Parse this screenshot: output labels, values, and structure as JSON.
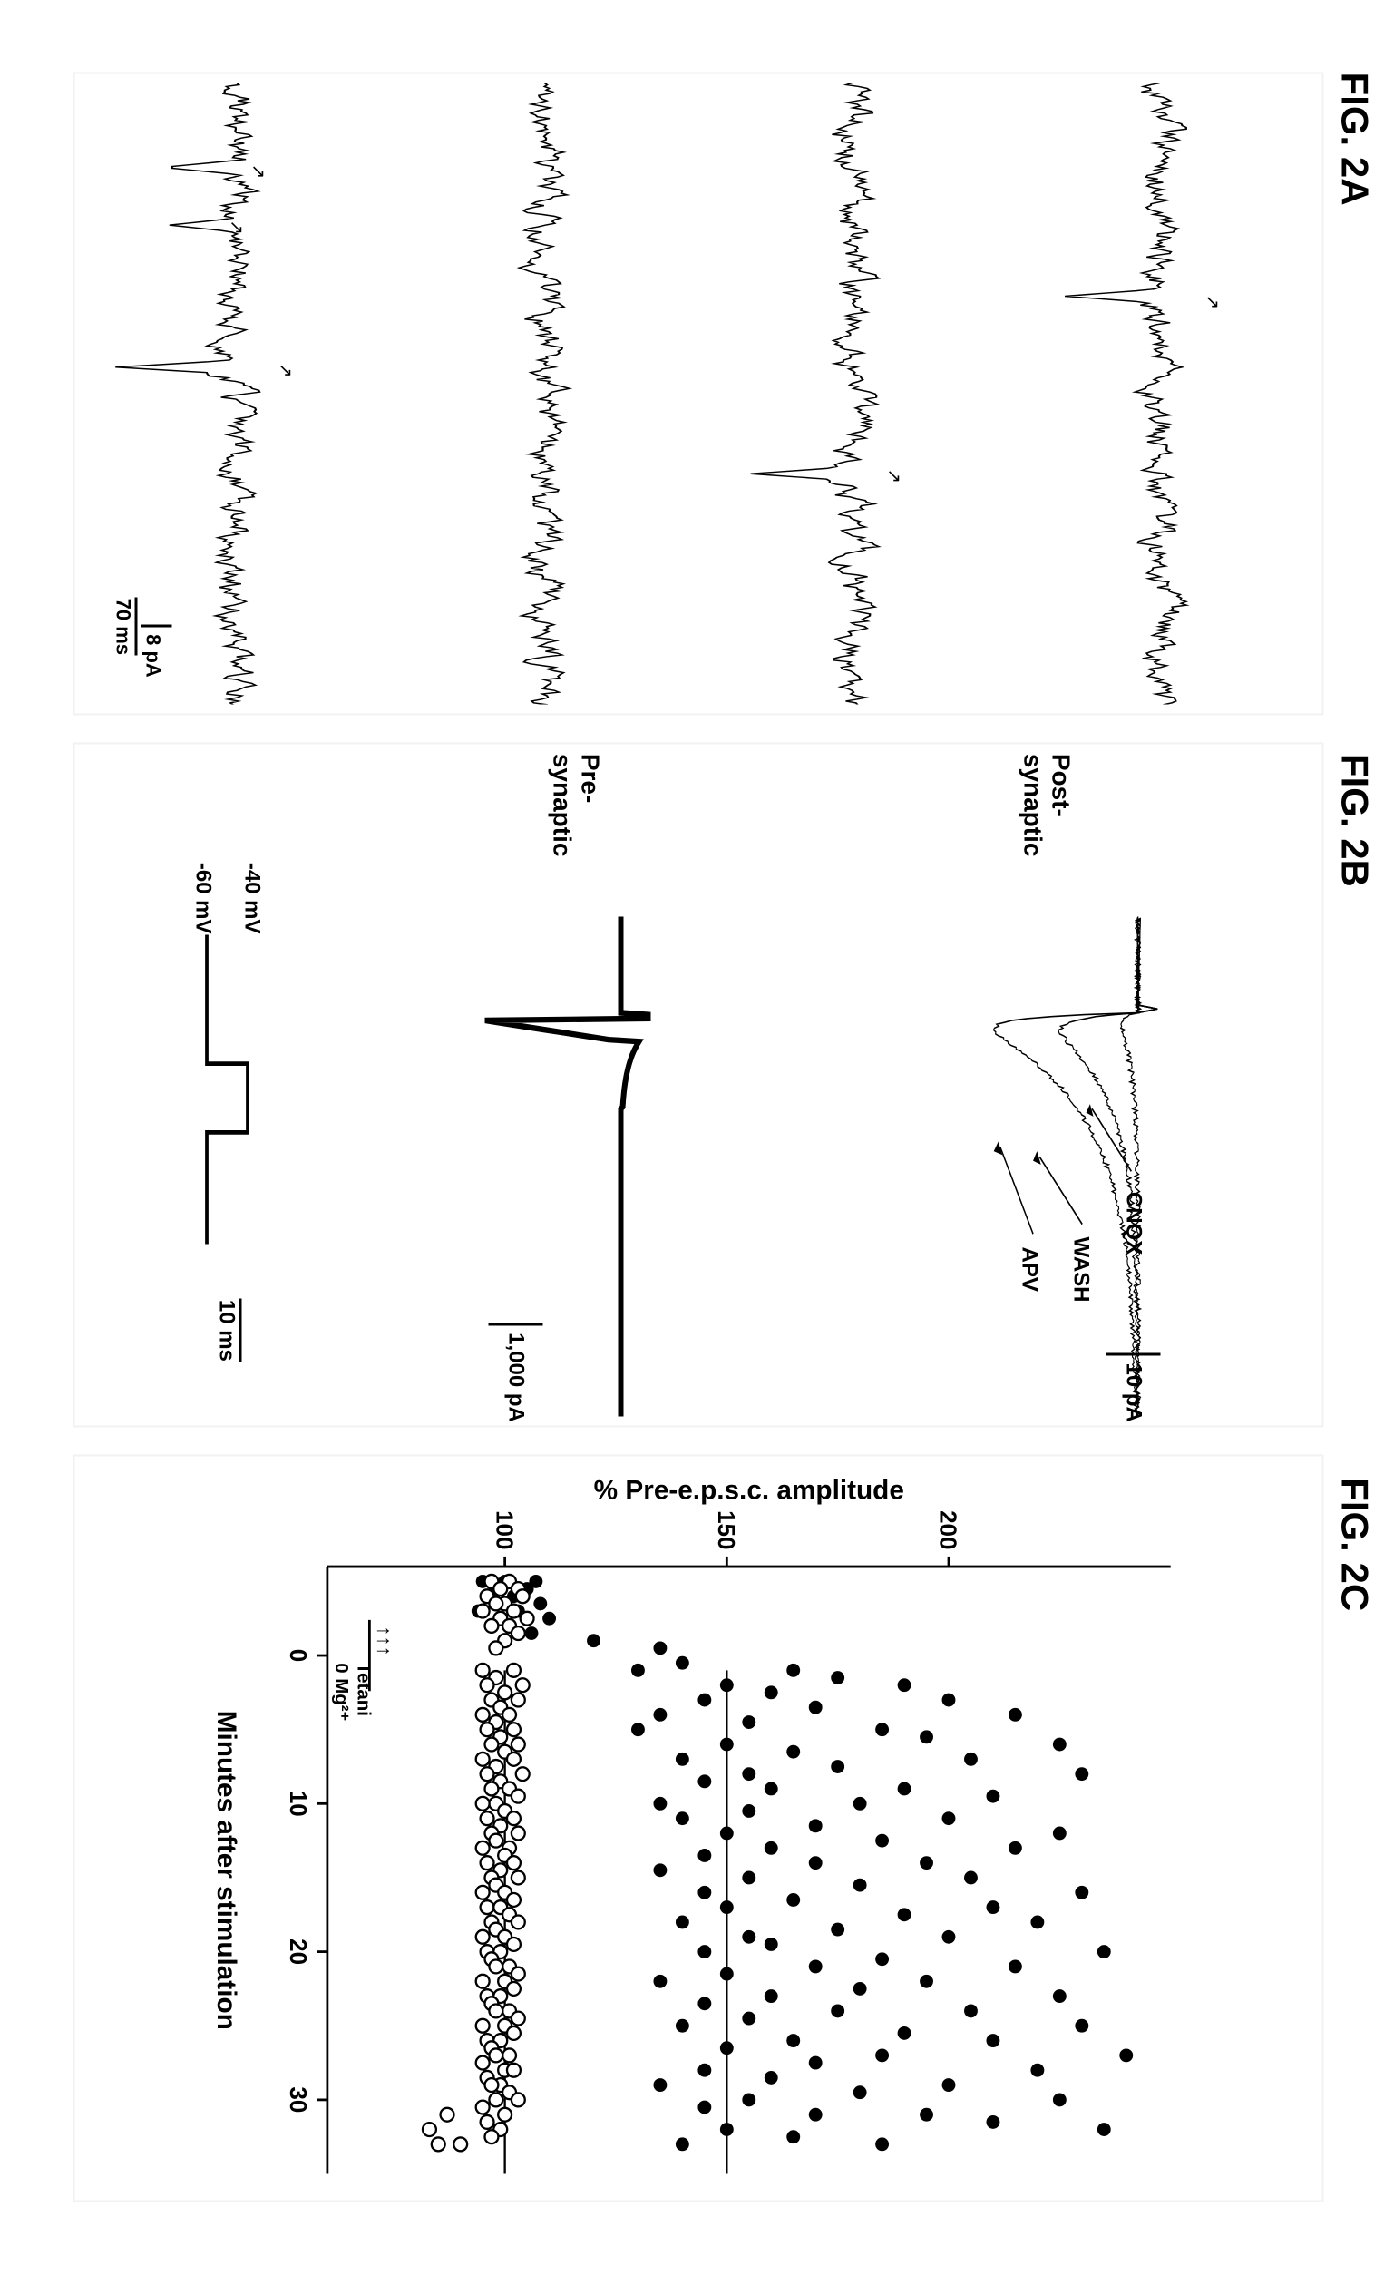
{
  "figLabels": {
    "A": "FIG. 2A",
    "B": "FIG. 2B",
    "C": "FIG. 2C"
  },
  "panelA": {
    "scale_x_label": "70 ms",
    "scale_y_label": "8 pA",
    "trace_color": "#000000"
  },
  "panelB": {
    "labels": {
      "post": "Post-\nsynaptic",
      "pre": "Pre-\nsynaptic"
    },
    "annotations": {
      "cnqx": "CNQX",
      "wash": "WASH",
      "apv": "APV"
    },
    "scale_top": "10 pA",
    "scale_bottom": "1,000 pA",
    "scale_time": "10 ms",
    "voltages": {
      "high": "-40 mV",
      "low": "-60 mV"
    },
    "trace_color": "#000000"
  },
  "panelC": {
    "ylabel": "% Pre-e.p.s.c. amplitude",
    "xlabel": "Minutes after stimulation",
    "stim_label": "Tetani\n0 Mg²⁺",
    "ylim": [
      60,
      250
    ],
    "yticks": [
      100,
      150,
      200
    ],
    "xlim": [
      -6,
      35
    ],
    "xticks": [
      0,
      10,
      20,
      30
    ],
    "hlines": [
      100,
      150
    ],
    "tick_marks": "↑↑↑",
    "colors": {
      "filled": "#000000",
      "open_stroke": "#000000",
      "open_fill": "#ffffff",
      "axis": "#000000",
      "bg": "#ffffff"
    },
    "filled_points": [
      [
        -5,
        100
      ],
      [
        -5,
        107
      ],
      [
        -5,
        95
      ],
      [
        -4.5,
        98
      ],
      [
        -4.5,
        105
      ],
      [
        -4,
        102
      ],
      [
        -4,
        96
      ],
      [
        -3.5,
        108
      ],
      [
        -3.5,
        100
      ],
      [
        -3,
        94
      ],
      [
        -3,
        103
      ],
      [
        -2.5,
        99
      ],
      [
        -2.5,
        110
      ],
      [
        -2,
        101
      ],
      [
        -2,
        97
      ],
      [
        -1.5,
        106
      ],
      [
        -1,
        120
      ],
      [
        -0.5,
        135
      ],
      [
        0.5,
        140
      ],
      [
        1,
        165
      ],
      [
        1,
        130
      ],
      [
        1.5,
        175
      ],
      [
        2,
        150
      ],
      [
        2,
        190
      ],
      [
        2.5,
        160
      ],
      [
        3,
        145
      ],
      [
        3,
        200
      ],
      [
        3.5,
        170
      ],
      [
        4,
        135
      ],
      [
        4,
        215
      ],
      [
        4.5,
        155
      ],
      [
        5,
        185
      ],
      [
        5,
        130
      ],
      [
        5.5,
        195
      ],
      [
        6,
        150
      ],
      [
        6,
        225
      ],
      [
        6.5,
        165
      ],
      [
        7,
        140
      ],
      [
        7,
        205
      ],
      [
        7.5,
        175
      ],
      [
        8,
        155
      ],
      [
        8,
        230
      ],
      [
        8.5,
        145
      ],
      [
        9,
        190
      ],
      [
        9,
        160
      ],
      [
        9.5,
        210
      ],
      [
        10,
        135
      ],
      [
        10,
        180
      ],
      [
        10.5,
        155
      ],
      [
        11,
        200
      ],
      [
        11,
        140
      ],
      [
        11.5,
        170
      ],
      [
        12,
        225
      ],
      [
        12,
        150
      ],
      [
        12.5,
        185
      ],
      [
        13,
        160
      ],
      [
        13,
        215
      ],
      [
        13.5,
        145
      ],
      [
        14,
        195
      ],
      [
        14,
        170
      ],
      [
        14.5,
        135
      ],
      [
        15,
        205
      ],
      [
        15,
        155
      ],
      [
        15.5,
        180
      ],
      [
        16,
        230
      ],
      [
        16,
        145
      ],
      [
        16.5,
        165
      ],
      [
        17,
        210
      ],
      [
        17,
        150
      ],
      [
        17.5,
        190
      ],
      [
        18,
        140
      ],
      [
        18,
        220
      ],
      [
        18.5,
        175
      ],
      [
        19,
        155
      ],
      [
        19,
        200
      ],
      [
        19.5,
        160
      ],
      [
        20,
        235
      ],
      [
        20,
        145
      ],
      [
        20.5,
        185
      ],
      [
        21,
        170
      ],
      [
        21,
        215
      ],
      [
        21.5,
        150
      ],
      [
        22,
        195
      ],
      [
        22,
        135
      ],
      [
        22.5,
        180
      ],
      [
        23,
        225
      ],
      [
        23,
        160
      ],
      [
        23.5,
        145
      ],
      [
        24,
        205
      ],
      [
        24,
        175
      ],
      [
        24.5,
        155
      ],
      [
        25,
        230
      ],
      [
        25,
        140
      ],
      [
        25.5,
        190
      ],
      [
        26,
        165
      ],
      [
        26,
        210
      ],
      [
        26.5,
        150
      ],
      [
        27,
        185
      ],
      [
        27,
        240
      ],
      [
        27.5,
        170
      ],
      [
        28,
        145
      ],
      [
        28,
        220
      ],
      [
        28.5,
        160
      ],
      [
        29,
        200
      ],
      [
        29,
        135
      ],
      [
        29.5,
        180
      ],
      [
        30,
        155
      ],
      [
        30,
        225
      ],
      [
        30.5,
        145
      ],
      [
        31,
        195
      ],
      [
        31,
        170
      ],
      [
        31.5,
        210
      ],
      [
        32,
        150
      ],
      [
        32,
        235
      ],
      [
        32.5,
        165
      ],
      [
        33,
        185
      ],
      [
        33,
        140
      ]
    ],
    "open_points": [
      [
        -5,
        101
      ],
      [
        -5,
        97
      ],
      [
        -4.5,
        103
      ],
      [
        -4.5,
        99
      ],
      [
        -4,
        96
      ],
      [
        -4,
        104
      ],
      [
        -3.5,
        100
      ],
      [
        -3.5,
        98
      ],
      [
        -3,
        102
      ],
      [
        -3,
        95
      ],
      [
        -2.5,
        99
      ],
      [
        -2.5,
        105
      ],
      [
        -2,
        101
      ],
      [
        -2,
        97
      ],
      [
        -1.5,
        103
      ],
      [
        -1,
        100
      ],
      [
        -0.5,
        98
      ],
      [
        1,
        95
      ],
      [
        1,
        102
      ],
      [
        1.5,
        98
      ],
      [
        2,
        104
      ],
      [
        2,
        96
      ],
      [
        2.5,
        100
      ],
      [
        3,
        97
      ],
      [
        3,
        103
      ],
      [
        3.5,
        99
      ],
      [
        4,
        95
      ],
      [
        4,
        101
      ],
      [
        4.5,
        98
      ],
      [
        5,
        102
      ],
      [
        5,
        96
      ],
      [
        5.5,
        99
      ],
      [
        6,
        103
      ],
      [
        6,
        97
      ],
      [
        6.5,
        100
      ],
      [
        7,
        95
      ],
      [
        7,
        102
      ],
      [
        7.5,
        98
      ],
      [
        8,
        104
      ],
      [
        8,
        96
      ],
      [
        8.5,
        99
      ],
      [
        9,
        101
      ],
      [
        9,
        97
      ],
      [
        9.5,
        103
      ],
      [
        10,
        98
      ],
      [
        10,
        95
      ],
      [
        10.5,
        100
      ],
      [
        11,
        102
      ],
      [
        11,
        96
      ],
      [
        11.5,
        99
      ],
      [
        12,
        97
      ],
      [
        12,
        103
      ],
      [
        12.5,
        98
      ],
      [
        13,
        95
      ],
      [
        13,
        101
      ],
      [
        13.5,
        100
      ],
      [
        14,
        96
      ],
      [
        14,
        102
      ],
      [
        14.5,
        99
      ],
      [
        15,
        97
      ],
      [
        15,
        103
      ],
      [
        15.5,
        98
      ],
      [
        16,
        95
      ],
      [
        16,
        100
      ],
      [
        16.5,
        102
      ],
      [
        17,
        96
      ],
      [
        17,
        99
      ],
      [
        17.5,
        101
      ],
      [
        18,
        97
      ],
      [
        18,
        103
      ],
      [
        18.5,
        98
      ],
      [
        19,
        95
      ],
      [
        19,
        100
      ],
      [
        19.5,
        102
      ],
      [
        20,
        96
      ],
      [
        20,
        99
      ],
      [
        20.5,
        97
      ],
      [
        21,
        101
      ],
      [
        21,
        98
      ],
      [
        21.5,
        103
      ],
      [
        22,
        95
      ],
      [
        22,
        100
      ],
      [
        22.5,
        102
      ],
      [
        23,
        96
      ],
      [
        23,
        99
      ],
      [
        23.5,
        97
      ],
      [
        24,
        101
      ],
      [
        24,
        98
      ],
      [
        24.5,
        103
      ],
      [
        25,
        95
      ],
      [
        25,
        100
      ],
      [
        25.5,
        102
      ],
      [
        26,
        96
      ],
      [
        26,
        99
      ],
      [
        26.5,
        97
      ],
      [
        27,
        101
      ],
      [
        27,
        98
      ],
      [
        27.5,
        95
      ],
      [
        28,
        100
      ],
      [
        28,
        102
      ],
      [
        28.5,
        96
      ],
      [
        29,
        99
      ],
      [
        29,
        97
      ],
      [
        29.5,
        101
      ],
      [
        30,
        98
      ],
      [
        30,
        103
      ],
      [
        30.5,
        95
      ],
      [
        31,
        100
      ],
      [
        31,
        87
      ],
      [
        31.5,
        96
      ],
      [
        32,
        99
      ],
      [
        32,
        83
      ],
      [
        32.5,
        97
      ],
      [
        33,
        85
      ],
      [
        33,
        90
      ]
    ]
  }
}
